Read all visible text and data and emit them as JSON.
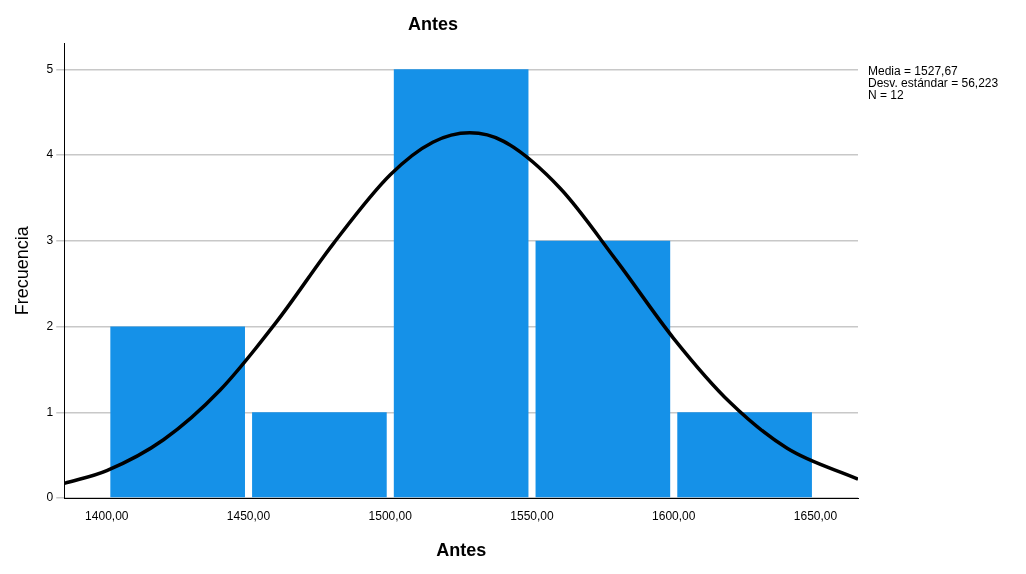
{
  "chart_data": {
    "type": "histogram",
    "title": "Antes",
    "xlabel": "Antes",
    "ylabel": "Frecuencia",
    "bins": [
      1400,
      1450,
      1500,
      1550,
      1600,
      1650
    ],
    "series": [
      {
        "color": "#1591e8",
        "values": [
          2,
          1,
          5,
          3,
          1
        ]
      },
      {
        "type": "line",
        "color": "#000000",
        "x": [
          1385,
          1400,
          1420,
          1440,
          1460,
          1480,
          1500,
          1515,
          1528,
          1540,
          1560,
          1580,
          1600,
          1620,
          1640,
          1665
        ],
        "values": [
          0.17,
          0.32,
          0.68,
          1.26,
          2.06,
          2.97,
          3.77,
          4.15,
          4.26,
          4.16,
          3.61,
          2.76,
          1.86,
          1.11,
          0.58,
          0.22
        ]
      }
    ],
    "xlim": [
      1385,
      1665
    ],
    "ylim": [
      0,
      5.3
    ],
    "xticks": [
      {
        "value": 1400,
        "label": "1400,00"
      },
      {
        "value": 1450,
        "label": "1450,00"
      },
      {
        "value": 1500,
        "label": "1500,00"
      },
      {
        "value": 1550,
        "label": "1550,00"
      },
      {
        "value": 1600,
        "label": "1600,00"
      },
      {
        "value": 1650,
        "label": "1650,00"
      }
    ],
    "yticks": [
      0,
      1,
      2,
      3,
      4,
      5
    ],
    "grid": "y",
    "legend": false,
    "annotations": [
      "Media = 1527,67",
      "Desv. estándar = 56,223",
      "N = 12"
    ]
  }
}
